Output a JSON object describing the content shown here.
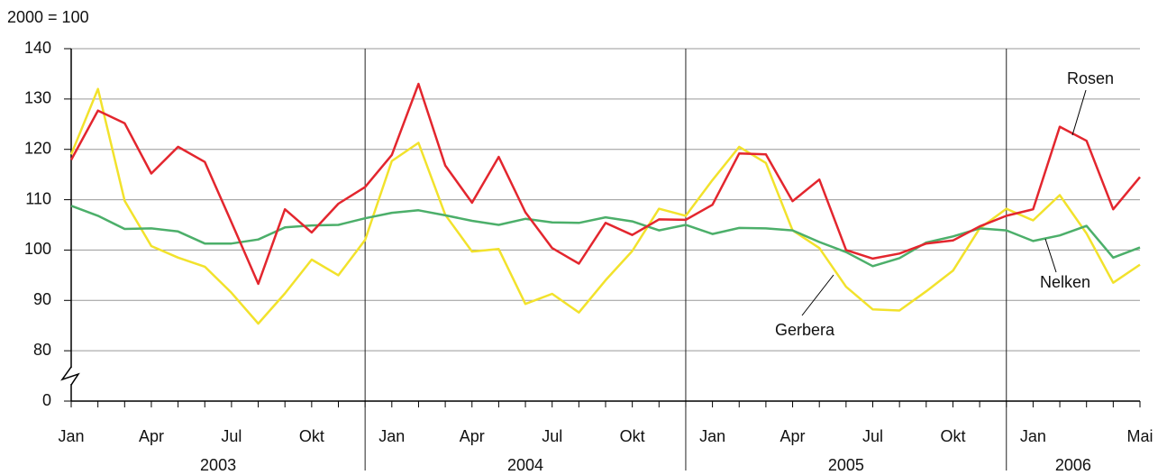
{
  "chart_data": {
    "type": "line",
    "ylabel": "2000 = 100",
    "categories": [
      "Jan",
      null,
      null,
      "Apr",
      null,
      null,
      "Jul",
      null,
      null,
      "Okt",
      null,
      null,
      "Jan",
      null,
      null,
      "Apr",
      null,
      null,
      "Jul",
      null,
      null,
      "Okt",
      null,
      null,
      "Jan",
      null,
      null,
      "Apr",
      null,
      null,
      "Jul",
      null,
      null,
      "Okt",
      null,
      null,
      "Jan",
      null,
      null,
      null,
      "Mai"
    ],
    "x_groups": [
      "2003",
      "2004",
      "2005",
      "2006"
    ],
    "series": [
      {
        "name": "Rosen",
        "color": "#e3262e",
        "values": [
          117.9,
          127.7,
          125.2,
          115.2,
          120.5,
          117.5,
          105.5,
          93.3,
          108.1,
          103.5,
          109.2,
          112.5,
          118.9,
          133,
          116.8,
          109.4,
          118.5,
          107.5,
          100.4,
          97.3,
          105.4,
          103,
          106.1,
          106,
          109,
          119.2,
          119,
          109.7,
          114,
          100,
          98.3,
          99.3,
          101.3,
          101.9,
          104.7,
          106.8,
          108.1,
          124.5,
          121.7,
          108.1,
          114.5
        ]
      },
      {
        "name": "Nelken",
        "color": "#4caf6a",
        "values": [
          108.8,
          106.8,
          104.2,
          104.3,
          103.7,
          101.3,
          101.3,
          102.1,
          104.5,
          104.9,
          105,
          106.3,
          107.4,
          107.9,
          106.9,
          105.8,
          105,
          106.2,
          105.5,
          105.4,
          106.5,
          105.7,
          103.9,
          105,
          103.2,
          104.4,
          104.3,
          103.9,
          101.6,
          99.6,
          96.8,
          98.4,
          101.5,
          102.7,
          104.3,
          103.9,
          101.8,
          102.9,
          104.8,
          98.5,
          100.5
        ]
      },
      {
        "name": "Gerbera",
        "color": "#f2e22c",
        "values": [
          119,
          132,
          109.8,
          100.8,
          98.5,
          96.7,
          91.5,
          85.4,
          91.4,
          98.1,
          95,
          102,
          117.7,
          121.3,
          107,
          99.7,
          100.2,
          89.3,
          91.3,
          87.6,
          94,
          99.8,
          108.2,
          106.8,
          113.9,
          120.5,
          117.3,
          103.9,
          100.4,
          92.7,
          88.2,
          88,
          91.8,
          95.9,
          104.3,
          108.2,
          105.9,
          110.9,
          103.3,
          93.5,
          97.1
        ]
      }
    ],
    "ylim": [
      0,
      140
    ],
    "y_break": [
      0,
      80
    ],
    "yticks": [
      0,
      80,
      90,
      100,
      110,
      120,
      130,
      140
    ],
    "grid": true
  }
}
